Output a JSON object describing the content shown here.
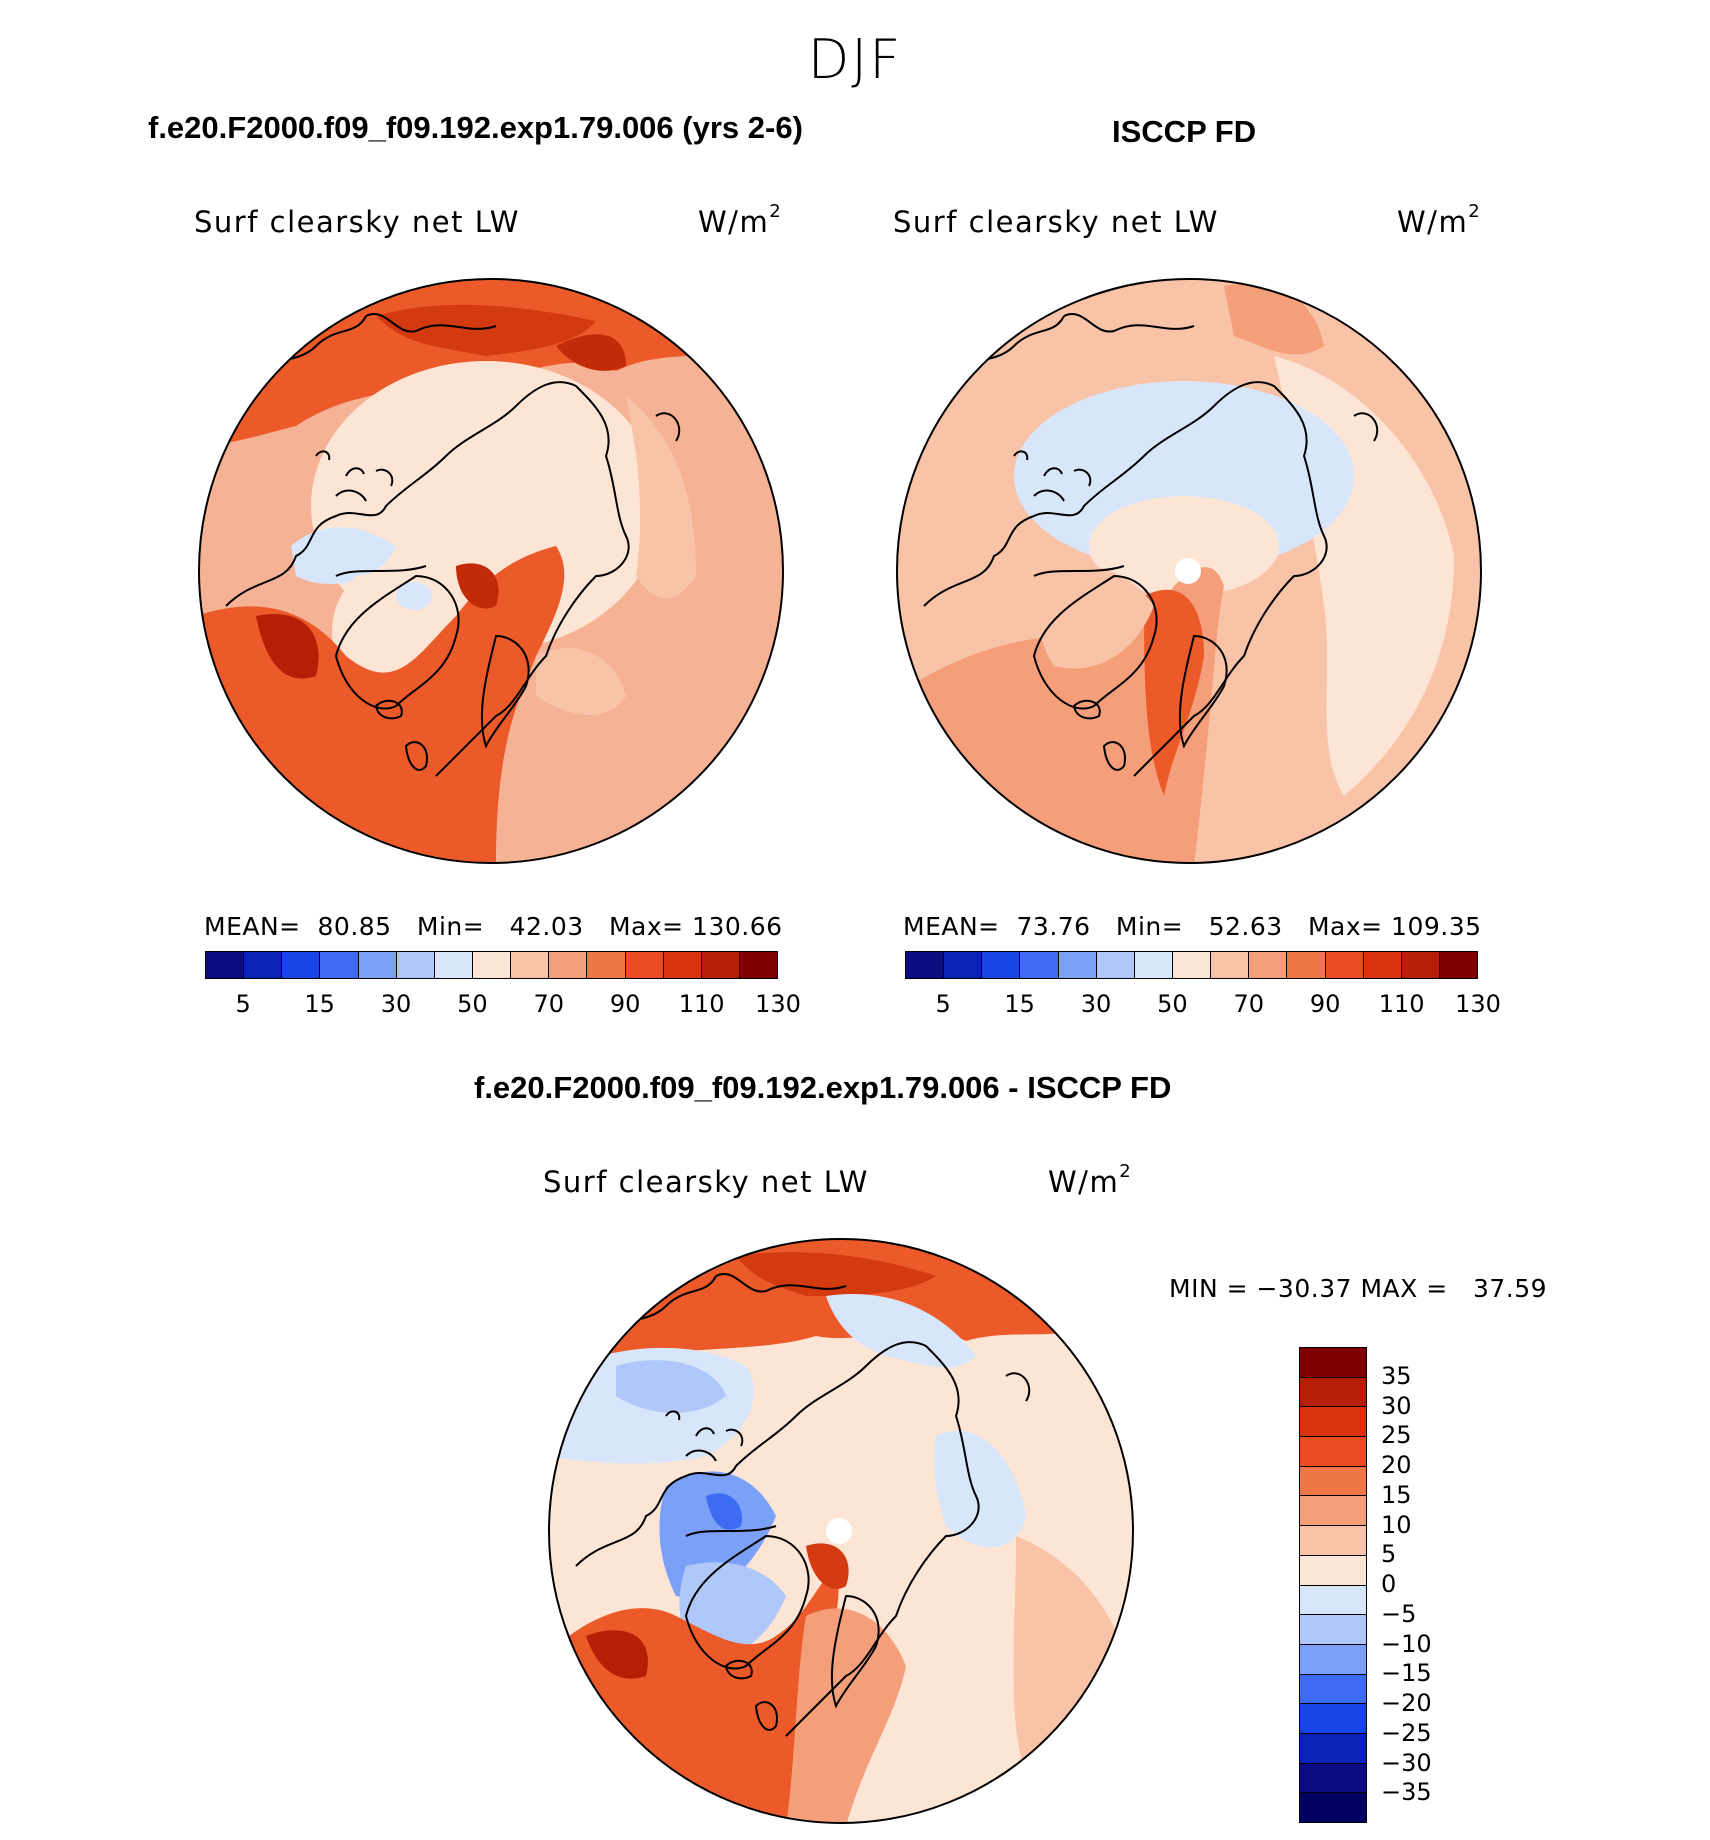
{
  "figure": {
    "season": "DJF",
    "units": "W/m",
    "units_exp": "2",
    "variable": "Surf clearsky net LW"
  },
  "panels": [
    {
      "title": "f.e20.F2000.f09_f09.192.exp1.79.006 (yrs 2-6)",
      "stats_text": "MEAN=  80.85   Min=   42.03   Max= 130.66",
      "colorbar_ticks": [
        "5",
        "15",
        "30",
        "50",
        "70",
        "90",
        "110",
        "130"
      ],
      "colorbar_colors": [
        "#0b0b84",
        "#0a22b8",
        "#1a45e6",
        "#3d6cf2",
        "#7aa0f7",
        "#b0c8f9",
        "#d8e6fb",
        "#fde5d6",
        "#f9c3a8",
        "#f59f7a",
        "#f17646",
        "#ea4c22",
        "#d9330d",
        "#b61e06",
        "#7f0000"
      ]
    },
    {
      "title": "ISCCP FD",
      "stats_text": "MEAN=  73.76   Min=   52.63   Max= 109.35",
      "colorbar_ticks": [
        "5",
        "15",
        "30",
        "50",
        "70",
        "90",
        "110",
        "130"
      ],
      "colorbar_colors": [
        "#0b0b84",
        "#0a22b8",
        "#1a45e6",
        "#3d6cf2",
        "#7aa0f7",
        "#b0c8f9",
        "#d8e6fb",
        "#fde5d6",
        "#f9c3a8",
        "#f59f7a",
        "#f17646",
        "#ea4c22",
        "#d9330d",
        "#b61e06",
        "#7f0000"
      ]
    },
    {
      "title": "f.e20.F2000.f09_f09.192.exp1.79.006 - ISCCP FD",
      "stats_text": "MIN = −30.37 MAX =   37.59",
      "colorbar_ticks": [
        "35",
        "30",
        "25",
        "20",
        "15",
        "10",
        "5",
        "0",
        "−5",
        "−10",
        "−15",
        "−20",
        "−25",
        "−30",
        "−35"
      ],
      "colorbar_colors": [
        "#7f0000",
        "#b61e06",
        "#d9330d",
        "#ea4c22",
        "#f17646",
        "#f59f7a",
        "#f9c3a8",
        "#fde5d6",
        "#d8e6fb",
        "#b0c8f9",
        "#7aa0f7",
        "#3d6cf2",
        "#1a45e6",
        "#0a22b8",
        "#0b0b84",
        "#000060"
      ]
    }
  ]
}
